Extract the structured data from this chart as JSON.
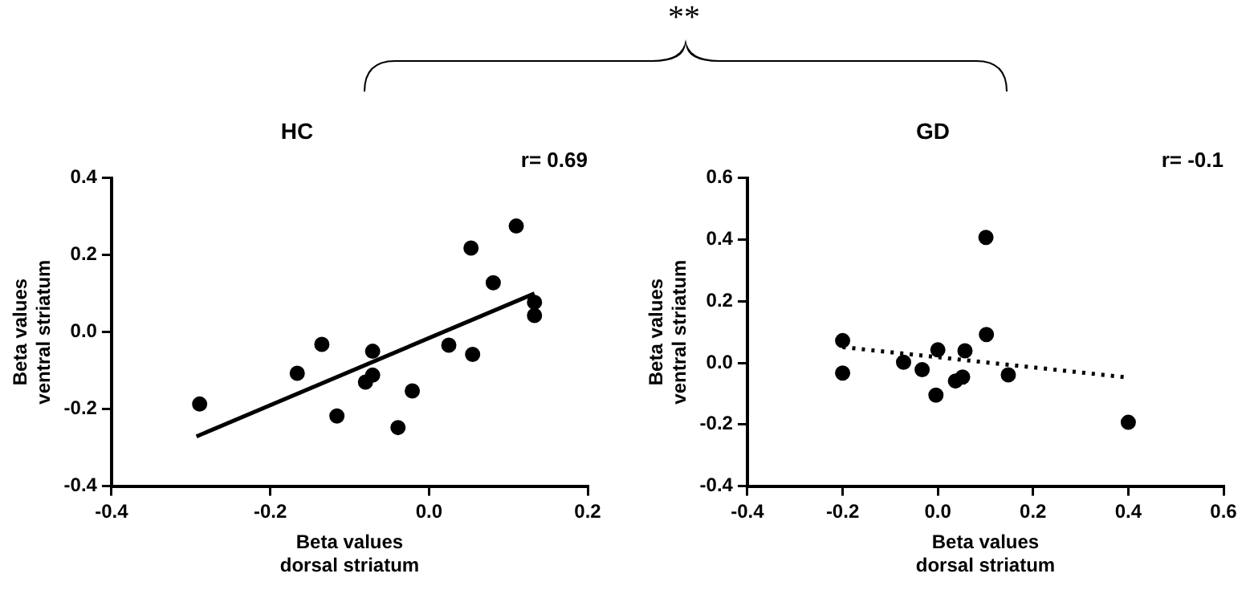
{
  "chart_data": [
    {
      "type": "scatter",
      "title": "HC",
      "xlabel": "Beta values\ndorsal striatum",
      "ylabel": "Beta values\nventral striatum",
      "annotations": [
        "r= 0.69",
        "**"
      ],
      "xlim": [
        -0.4,
        0.2
      ],
      "xticks": [
        -0.4,
        -0.2,
        {
          "value": 0,
          "label": "0.0"
        },
        0.2
      ],
      "ylim": [
        -0.4,
        0.4
      ],
      "yticks": [
        -0.4,
        -0.2,
        {
          "value": 0,
          "label": "0.0"
        },
        0.2,
        0.4
      ],
      "grid": false,
      "legend": false,
      "series": [
        {
          "marker": "circle",
          "color": "#000000",
          "x": [
            -0.289,
            -0.166,
            -0.135,
            -0.116,
            -0.071,
            -0.071,
            -0.08,
            -0.039,
            -0.021,
            0.025,
            0.055,
            0.053,
            0.081,
            0.11,
            0.133,
            0.133
          ],
          "values": [
            -0.187,
            -0.107,
            -0.032,
            -0.218,
            -0.05,
            -0.112,
            -0.13,
            -0.248,
            -0.153,
            -0.034,
            -0.058,
            0.218,
            0.128,
            0.275,
            0.077,
            0.043
          ]
        },
        {
          "type": "line",
          "marker": "none",
          "color": "#000000",
          "line_style": "solid",
          "x": [
            -0.293,
            0.133
          ],
          "values": [
            -0.271,
            0.1
          ]
        }
      ]
    },
    {
      "type": "scatter",
      "title": "GD",
      "xlabel": "Beta values\ndorsal striatum",
      "ylabel": "Beta values\nventral striatum",
      "annotations": [
        "r= -0.1"
      ],
      "xlim": [
        -0.4,
        0.6
      ],
      "xticks": [
        -0.4,
        -0.2,
        {
          "value": 0,
          "label": "0.0"
        },
        0.2,
        0.4,
        0.6
      ],
      "ylim": [
        -0.4,
        0.6
      ],
      "yticks": [
        -0.4,
        -0.2,
        {
          "value": 0,
          "label": "0.0"
        },
        0.2,
        0.4,
        0.6
      ],
      "grid": false,
      "legend": false,
      "series": [
        {
          "marker": "circle",
          "color": "#000000",
          "x": [
            -0.2,
            -0.2,
            -0.072,
            -0.033,
            0.0,
            -0.004,
            0.037,
            0.052,
            0.057,
            0.101,
            0.102,
            0.148,
            0.4
          ],
          "values": [
            0.072,
            -0.033,
            0.002,
            -0.022,
            0.042,
            -0.105,
            -0.059,
            -0.046,
            0.039,
            0.407,
            0.092,
            -0.039,
            -0.193
          ]
        },
        {
          "type": "line",
          "marker": "none",
          "color": "#000000",
          "line_style": "dotted",
          "x": [
            -0.2,
            0.402
          ],
          "values": [
            0.051,
            -0.048
          ]
        }
      ]
    }
  ]
}
